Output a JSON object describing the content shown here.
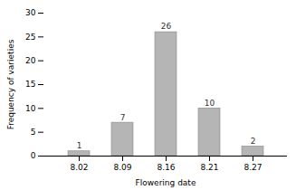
{
  "chart_data": {
    "type": "bar",
    "categories": [
      "8.02",
      "8.09",
      "8.16",
      "8.21",
      "8.27"
    ],
    "values": [
      1,
      7,
      26,
      10,
      2
    ],
    "color": "#b5b5b5",
    "xlabel": "Flowering date",
    "ylabel": "Frequency of varieties",
    "ylim": [
      0,
      30
    ],
    "yticks": [
      0,
      5,
      10,
      15,
      20,
      25,
      30
    ],
    "grid": false,
    "data_labels": true
  }
}
